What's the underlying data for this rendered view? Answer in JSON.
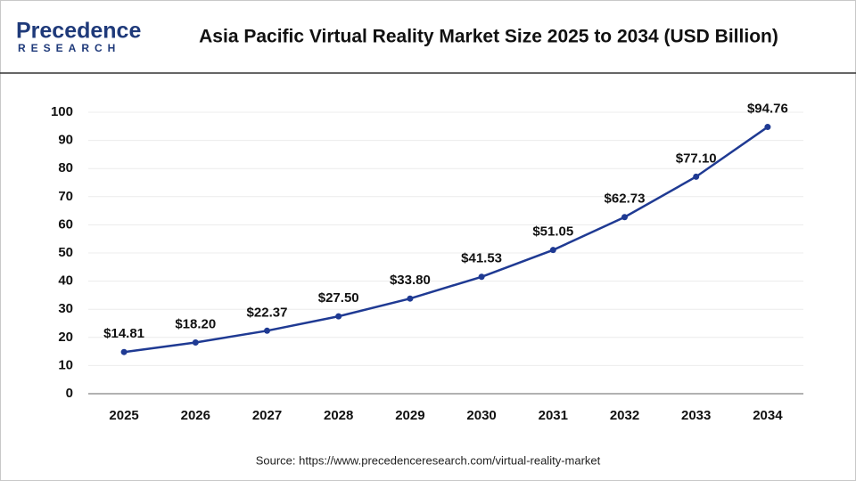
{
  "logo": {
    "name": "Precedence",
    "tagline": "RESEARCH"
  },
  "chart_data": {
    "type": "line",
    "title": "Asia Pacific Virtual Reality Market Size 2025 to 2034 (USD Billion)",
    "categories": [
      "2025",
      "2026",
      "2027",
      "2028",
      "2029",
      "2030",
      "2031",
      "2032",
      "2033",
      "2034"
    ],
    "series": [
      {
        "color": "#1f3a93",
        "values": [
          14.81,
          18.2,
          22.37,
          27.5,
          33.8,
          41.53,
          51.05,
          62.73,
          77.1,
          94.76
        ],
        "value_labels": [
          "$14.81",
          "$18.20",
          "$22.37",
          "$27.50",
          "$33.80",
          "$41.53",
          "$51.05",
          "$62.73",
          "$77.10",
          "$94.76"
        ]
      }
    ],
    "ylim": [
      0,
      100
    ],
    "yticks": [
      0,
      10,
      20,
      30,
      40,
      50,
      60,
      70,
      80,
      90,
      100
    ],
    "grid": true,
    "source": "Source: https://www.precedenceresearch.com/virtual-reality-market"
  }
}
